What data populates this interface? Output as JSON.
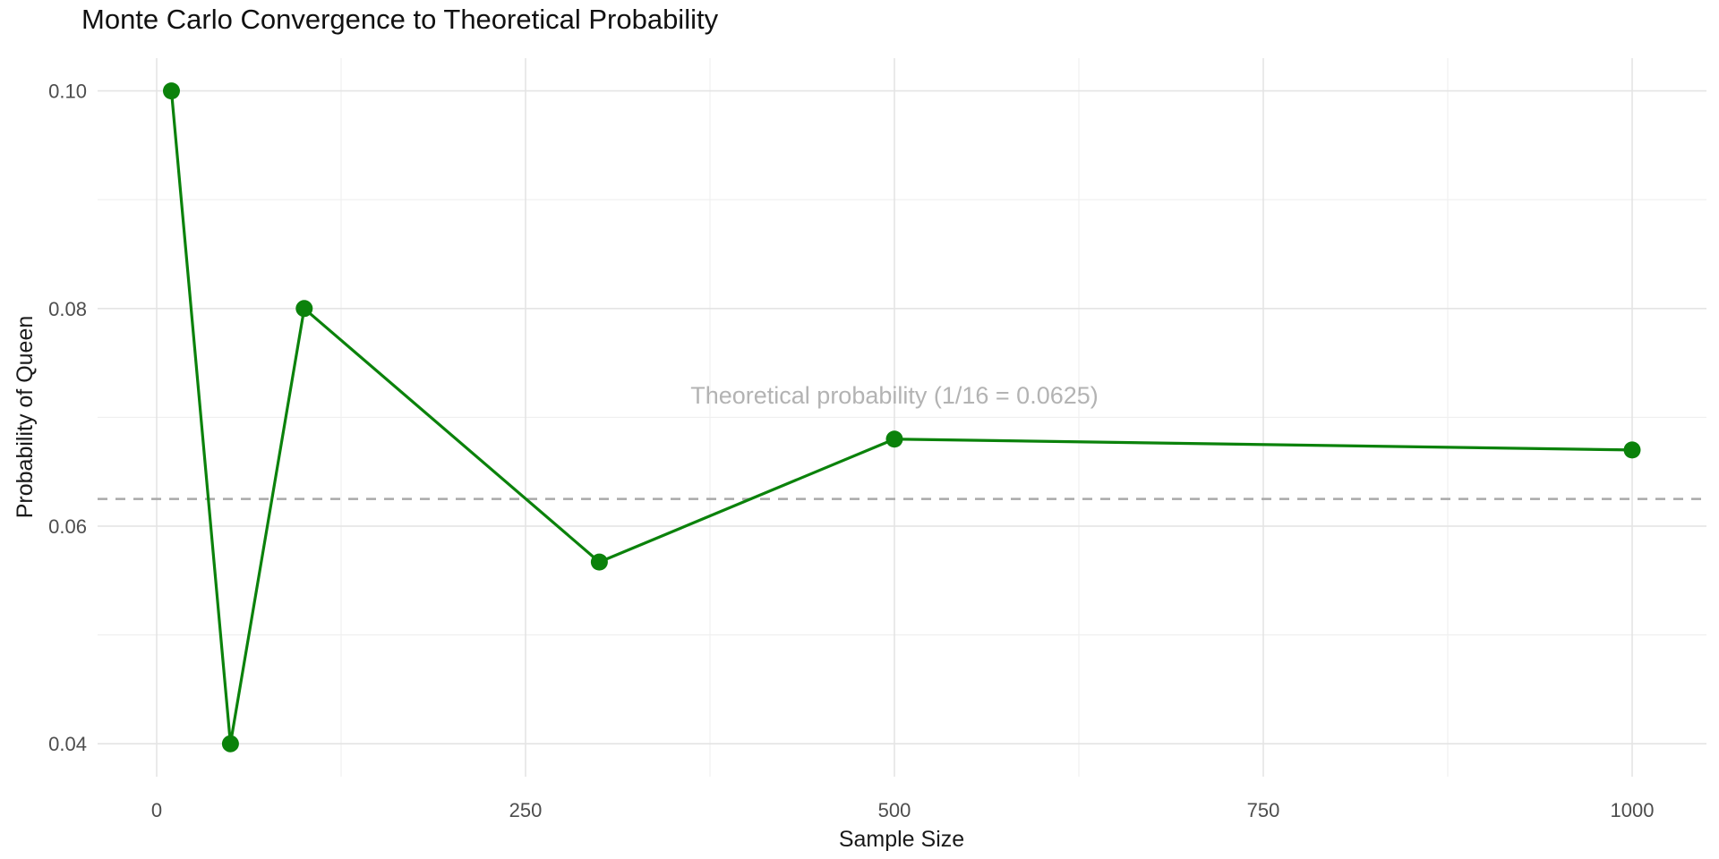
{
  "chart_data": {
    "type": "line",
    "title": "Monte Carlo Convergence to Theoretical Probability",
    "xlabel": "Sample Size",
    "ylabel": "Probability of Queen",
    "points": [
      {
        "x": 10,
        "y": 0.1
      },
      {
        "x": 50,
        "y": 0.04
      },
      {
        "x": 100,
        "y": 0.08
      },
      {
        "x": 300,
        "y": 0.0567
      },
      {
        "x": 500,
        "y": 0.068
      },
      {
        "x": 1000,
        "y": 0.067
      }
    ],
    "x_ticks": [
      0,
      250,
      500,
      750,
      1000
    ],
    "x_minor_ticks": [
      125,
      375,
      625,
      875
    ],
    "y_ticks": [
      {
        "value": 0.04,
        "label": "0.04"
      },
      {
        "value": 0.06,
        "label": "0.06"
      },
      {
        "value": 0.08,
        "label": "0.08"
      },
      {
        "value": 0.1,
        "label": "0.10"
      }
    ],
    "y_minor_ticks": [
      0.05,
      0.07,
      0.09
    ],
    "xlim": [
      0,
      1000
    ],
    "ylim": [
      0.04,
      0.1
    ],
    "grid": true,
    "legend": "none",
    "reference_line": {
      "y": 0.0625,
      "style": "dashed",
      "label": "Theoretical probability (1/16 = 0.0625)",
      "label_x": 500,
      "label_y": 0.072
    },
    "colors": {
      "series": "#0b820b",
      "reference_line": "#a9a9a9",
      "reference_label": "#b3b3b3",
      "grid_major": "#e4e4e4",
      "grid_minor": "#efefef",
      "tick_label": "#4d4d4d",
      "axis_title": "#1a1a1a",
      "title": "#111111",
      "background": "#ffffff"
    }
  }
}
